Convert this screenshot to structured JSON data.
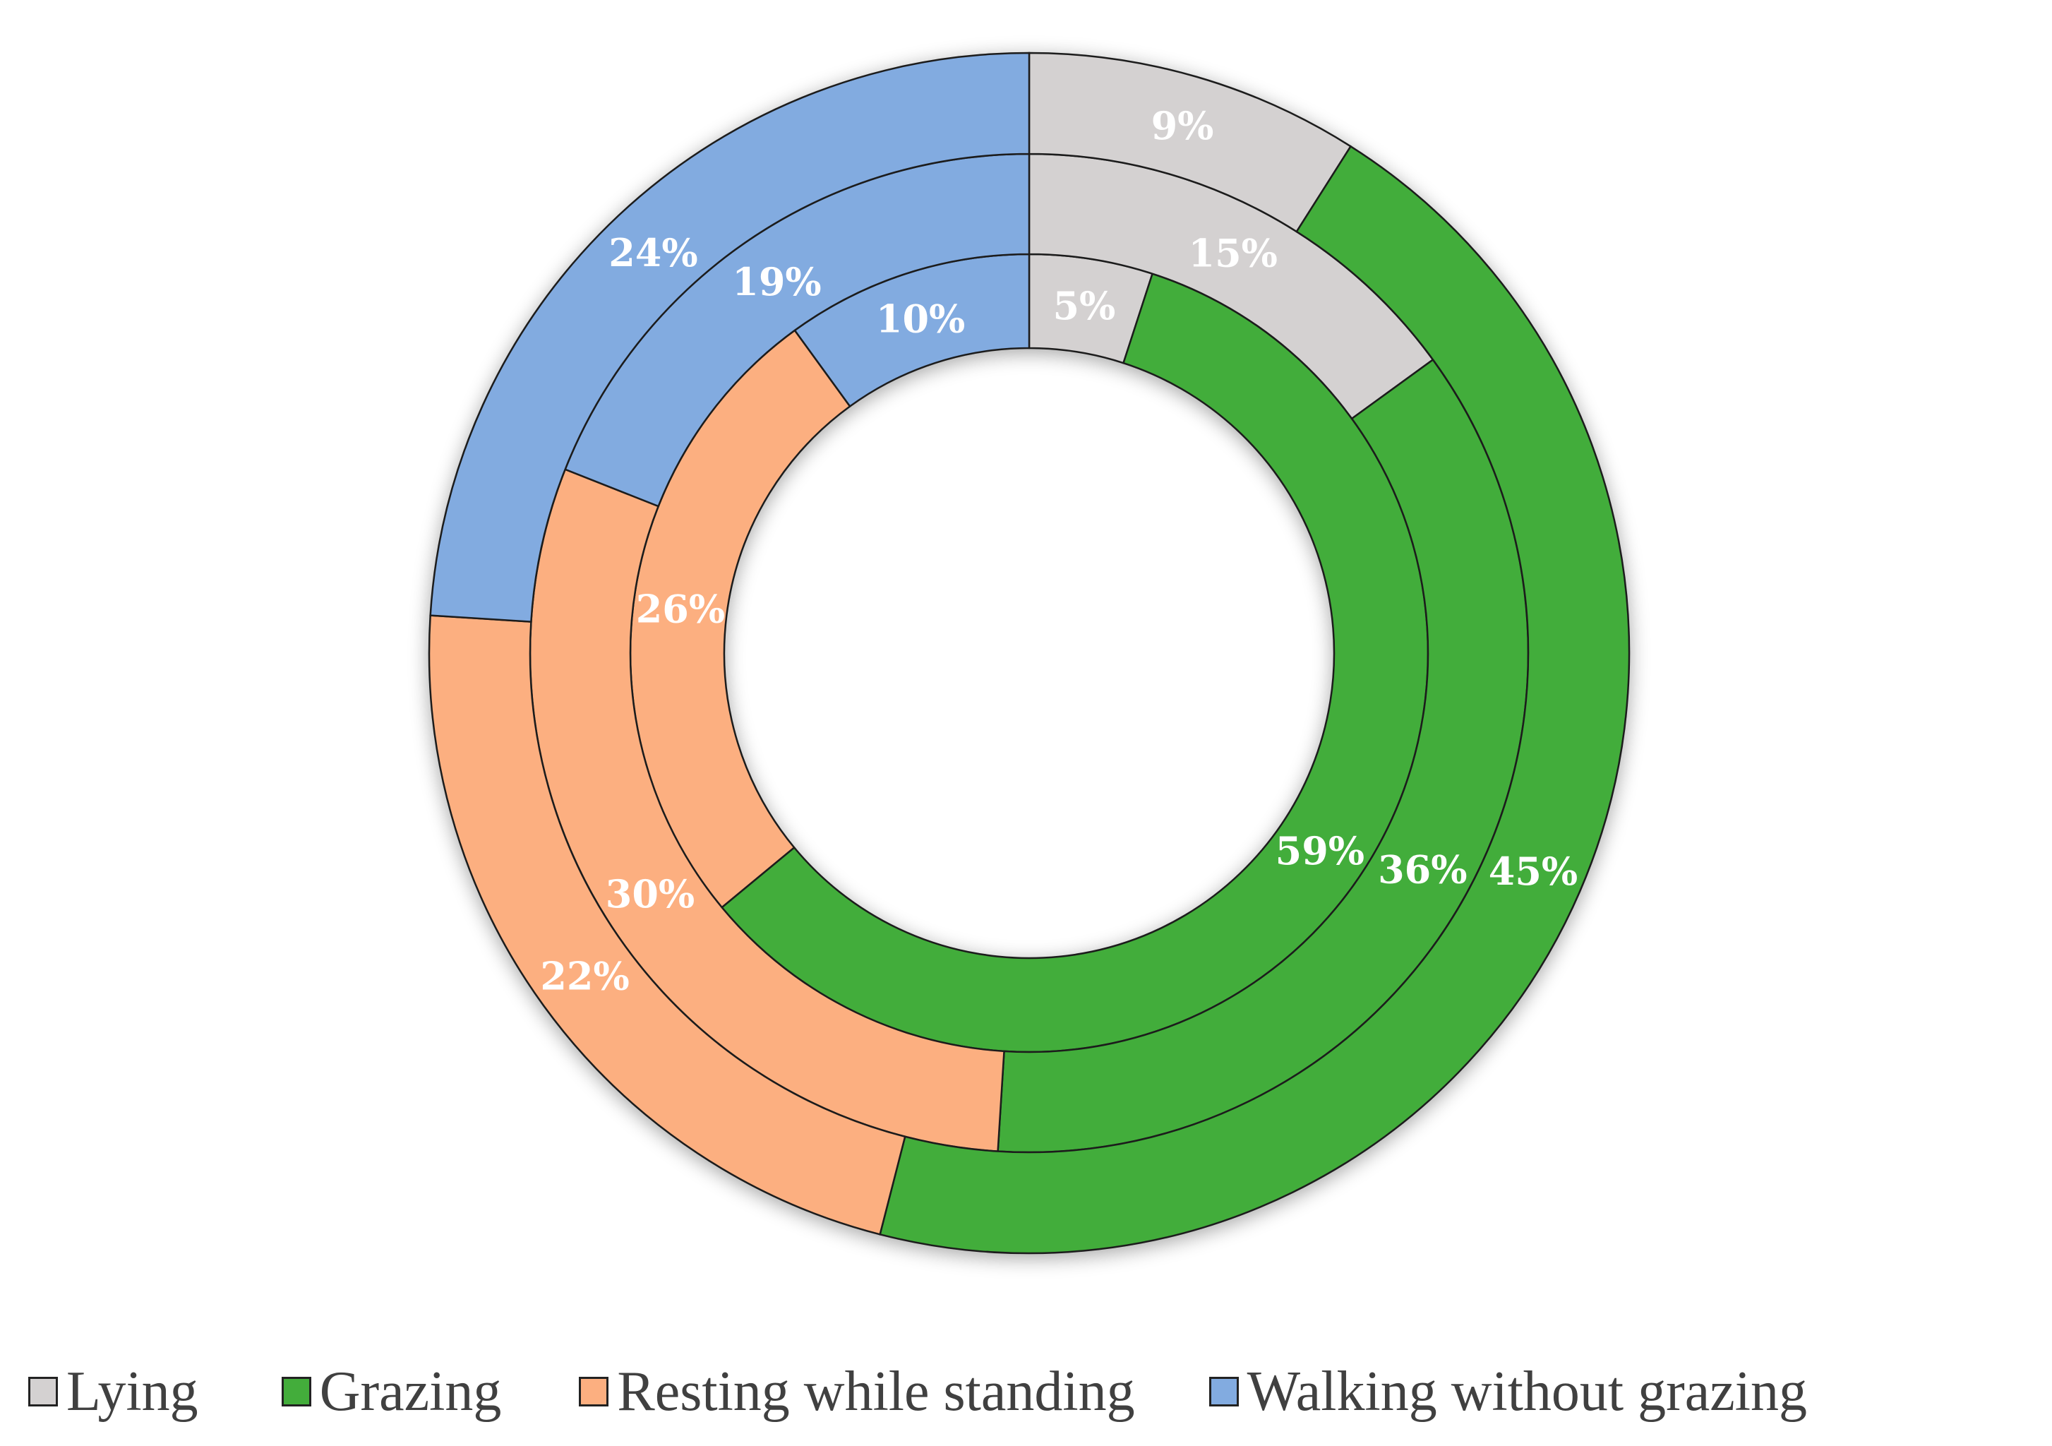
{
  "chart_data": {
    "type": "pie",
    "variant": "multi-ring-donut",
    "title": "",
    "categories": [
      "Lying",
      "Grazing",
      "Resting while standing",
      "Walking without grazing"
    ],
    "colors": {
      "Lying": "#d4d1d1",
      "Grazing": "#43ad3b",
      "Resting while standing": "#fcaf80",
      "Walking without grazing": "#82abe0"
    },
    "rings": [
      {
        "values": [
          5,
          59,
          26,
          10
        ],
        "labels": [
          "5%",
          "59%",
          "26%",
          "10%"
        ]
      },
      {
        "values": [
          15,
          36,
          30,
          19
        ],
        "labels": [
          "15%",
          "36%",
          "30%",
          "19%"
        ]
      },
      {
        "values": [
          9,
          45,
          22,
          24
        ],
        "labels": [
          "9%",
          "45%",
          "22%",
          "24%"
        ]
      }
    ],
    "legend": {
      "placement": "bottom",
      "items": [
        "Lying",
        "Grazing",
        "Resting while standing",
        "Walking without grazing"
      ]
    }
  }
}
